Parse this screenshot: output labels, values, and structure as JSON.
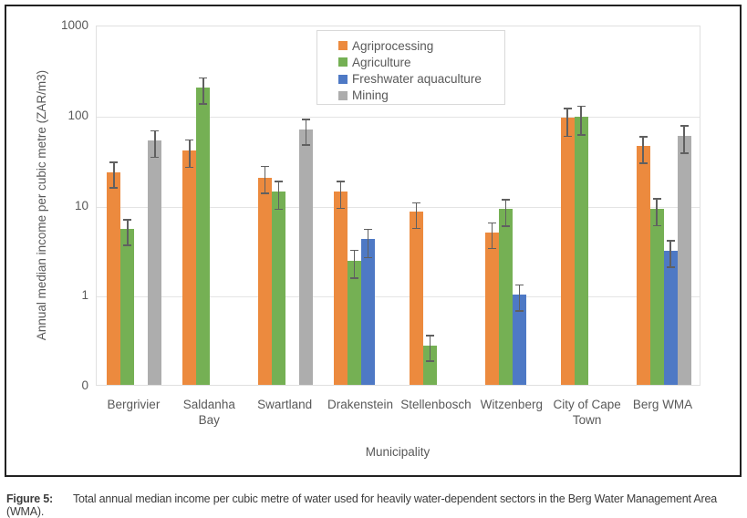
{
  "figure": {
    "caption_label": "Figure 5:",
    "caption_text": "Total annual median income per cubic metre of water used for heavily water-dependent sectors in the Berg Water Management Area (WMA)."
  },
  "chart_data": {
    "type": "bar",
    "scale": "log",
    "title": "",
    "xlabel": "Municipality",
    "ylabel": "Annual median income per cubic metre (ZAR/m3)",
    "y_ticks": [
      "1000",
      "100",
      "10",
      "1",
      "0"
    ],
    "y_tick_values": [
      1000,
      100,
      10,
      1,
      0.1
    ],
    "ylim_log": [
      0.1,
      1000
    ],
    "grid": true,
    "legend_position": "top-center",
    "error_bars": true,
    "categories": [
      "Bergrivier",
      "Saldanha Bay",
      "Swartland",
      "Drakenstein",
      "Stellenbosch",
      "Witzenberg",
      "City of Cape Town",
      "Berg WMA"
    ],
    "categories_display": [
      "Bergrivier",
      "Saldanha\nBay",
      "Swartland",
      "Drakenstein",
      "Stellenbosch",
      "Witzenberg",
      "City of Cape\nTown",
      "Berg WMA"
    ],
    "series": [
      {
        "name": "Agriprocessing",
        "color": "#EC8A3E",
        "values": [
          23,
          40,
          20,
          14,
          8.4,
          4.9,
          93,
          45
        ],
        "error_low": [
          16,
          27,
          14,
          9.5,
          5.7,
          3.4,
          60,
          30
        ],
        "error_high": [
          31,
          55,
          28,
          19,
          11,
          6.6,
          124,
          60
        ]
      },
      {
        "name": "Agriculture",
        "color": "#75B054",
        "values": [
          5.4,
          200,
          14,
          2.4,
          0.27,
          9,
          96,
          9.1
        ],
        "error_low": [
          3.7,
          137,
          9.3,
          1.6,
          0.19,
          6,
          62,
          6.1
        ],
        "error_high": [
          7.2,
          270,
          19,
          3.3,
          0.37,
          12,
          130,
          12.3
        ]
      },
      {
        "name": "Freshwater aquaculture",
        "color": "#4E79C5",
        "values": [
          null,
          null,
          null,
          4.2,
          null,
          1.0,
          null,
          3.1
        ],
        "error_low": [
          null,
          null,
          null,
          2.7,
          null,
          0.69,
          null,
          2.1
        ],
        "error_high": [
          null,
          null,
          null,
          5.6,
          null,
          1.35,
          null,
          4.2
        ]
      },
      {
        "name": "Mining",
        "color": "#ADADAD",
        "values": [
          52,
          null,
          69,
          null,
          null,
          null,
          null,
          58
        ],
        "error_low": [
          35,
          null,
          48,
          null,
          null,
          null,
          null,
          39
        ],
        "error_high": [
          70,
          null,
          93,
          null,
          null,
          null,
          null,
          79
        ]
      }
    ]
  },
  "colors": {
    "agriprocessing": "#EC8A3E",
    "agriculture": "#75B054",
    "freshwater_aquaculture": "#4E79C5",
    "mining": "#ADADAD",
    "gridline": "#E4E4E4",
    "error_bar": "#606060",
    "text": "#595959",
    "outer_border": "#222222"
  }
}
